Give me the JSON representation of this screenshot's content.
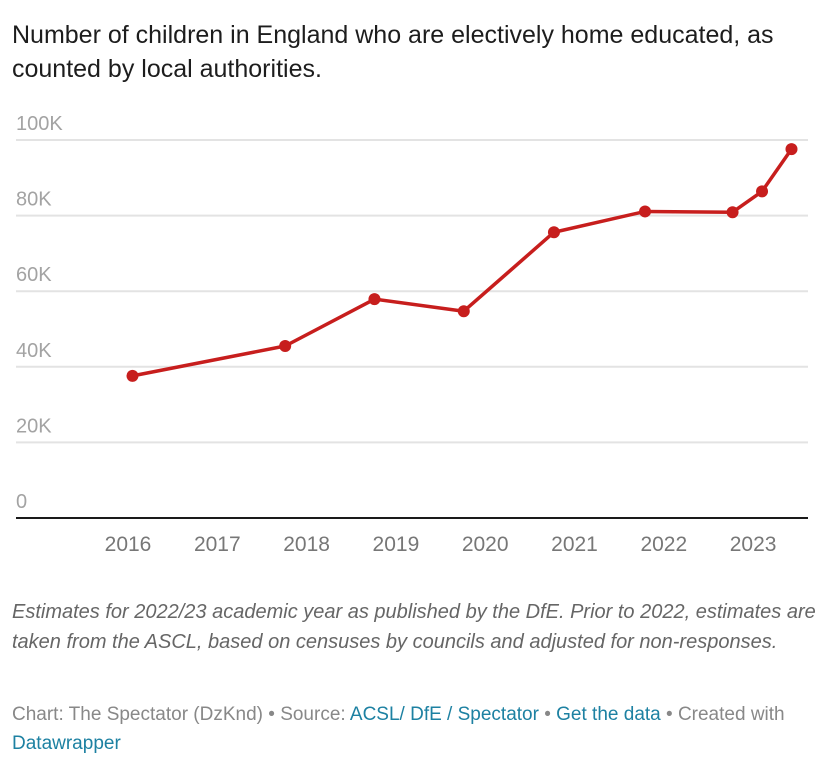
{
  "title": "Number of children in England who are electively home educated, as counted by local authorities.",
  "chart_data": {
    "type": "line",
    "title": "Number of children in England who are electively home educated, as counted by local authorities.",
    "xlabel": "",
    "ylabel": "",
    "x_ticks": [
      "2016",
      "2017",
      "2018",
      "2019",
      "2020",
      "2021",
      "2022",
      "2023"
    ],
    "y_ticks": [
      "0",
      "20K",
      "40K",
      "60K",
      "80K",
      "100K"
    ],
    "y_tick_values": [
      0,
      20000,
      40000,
      60000,
      80000,
      100000
    ],
    "ylim": [
      0,
      100000
    ],
    "xlim": [
      2015.2,
      2023.6
    ],
    "grid": true,
    "line_color": "#c71e1d",
    "series": [
      {
        "name": "Electively home educated children",
        "x": [
          2016.05,
          2017.76,
          2018.76,
          2019.76,
          2020.77,
          2021.79,
          2022.77,
          2023.1,
          2023.43
        ],
        "values": [
          37600,
          45500,
          57900,
          54700,
          75600,
          81100,
          80900,
          86400,
          97600
        ]
      }
    ]
  },
  "notes": "Estimates for 2022/23 academic year as published by the DfE. Prior to 2022, estimates are taken from the ASCL, based on censuses by councils and adjusted for non-responses.",
  "byline": {
    "chart_prefix": "Chart: The Spectator (DzKnd) • Source: ",
    "source_link": "ACSL/ DfE / Spectator",
    "separator1": " • ",
    "data_link": "Get the data",
    "separator2": " • Created with ",
    "tool_link": "Datawrapper"
  }
}
